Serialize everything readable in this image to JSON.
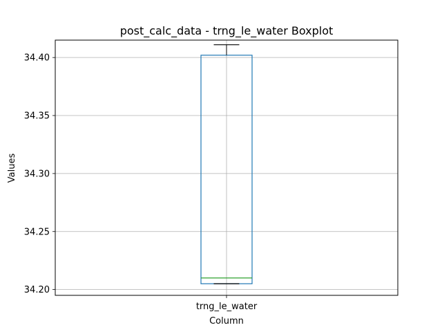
{
  "chart_data": {
    "type": "boxplot",
    "title": "post_calc_data - trng_le_water Boxplot",
    "xlabel": "Column",
    "ylabel": "Values",
    "categories": [
      "trng_le_water"
    ],
    "ylim": [
      34.195,
      34.415
    ],
    "yticks": [
      34.2,
      34.25,
      34.3,
      34.35,
      34.4
    ],
    "ytick_labels": [
      "34.20",
      "34.25",
      "34.30",
      "34.35",
      "34.40"
    ],
    "grid": true,
    "boxes": [
      {
        "name": "trng_le_water",
        "whisker_low": 34.205,
        "q1": 34.205,
        "median": 34.21,
        "q3": 34.402,
        "whisker_high": 34.411
      }
    ],
    "colors": {
      "box": "#1f77b4",
      "median": "#2ca02c",
      "whisker": "#000000",
      "grid": "#b0b0b0"
    }
  }
}
